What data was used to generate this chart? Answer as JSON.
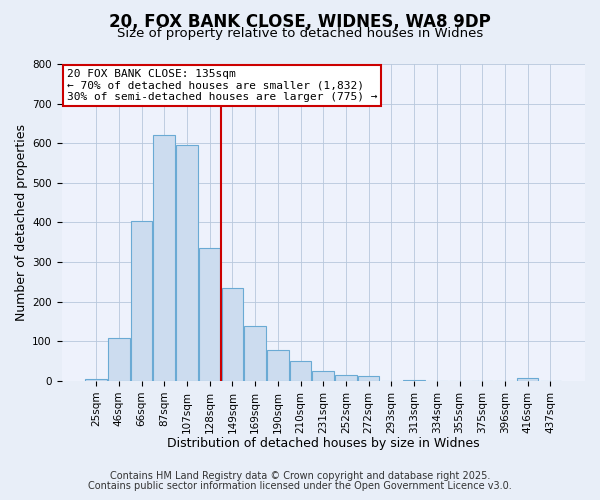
{
  "title": "20, FOX BANK CLOSE, WIDNES, WA8 9DP",
  "subtitle": "Size of property relative to detached houses in Widnes",
  "xlabel": "Distribution of detached houses by size in Widnes",
  "ylabel": "Number of detached properties",
  "bar_labels": [
    "25sqm",
    "46sqm",
    "66sqm",
    "87sqm",
    "107sqm",
    "128sqm",
    "149sqm",
    "169sqm",
    "190sqm",
    "210sqm",
    "231sqm",
    "252sqm",
    "272sqm",
    "293sqm",
    "313sqm",
    "334sqm",
    "355sqm",
    "375sqm",
    "396sqm",
    "416sqm",
    "437sqm"
  ],
  "bar_values": [
    5,
    108,
    405,
    620,
    595,
    335,
    235,
    138,
    78,
    50,
    25,
    15,
    12,
    0,
    3,
    0,
    0,
    0,
    0,
    8,
    0
  ],
  "bar_color": "#ccdcef",
  "bar_edge_color": "#6aaad4",
  "vline_x": 5.5,
  "vline_color": "#cc0000",
  "annotation_text": "20 FOX BANK CLOSE: 135sqm\n← 70% of detached houses are smaller (1,832)\n30% of semi-detached houses are larger (775) →",
  "ylim": [
    0,
    800
  ],
  "yticks": [
    0,
    100,
    200,
    300,
    400,
    500,
    600,
    700,
    800
  ],
  "footnote1": "Contains HM Land Registry data © Crown copyright and database right 2025.",
  "footnote2": "Contains public sector information licensed under the Open Government Licence v3.0.",
  "bg_color": "#e8eef8",
  "plot_bg_color": "#eef2fc",
  "title_fontsize": 12,
  "subtitle_fontsize": 9.5,
  "axis_label_fontsize": 9,
  "tick_fontsize": 7.5,
  "annotation_fontsize": 8,
  "footnote_fontsize": 7
}
